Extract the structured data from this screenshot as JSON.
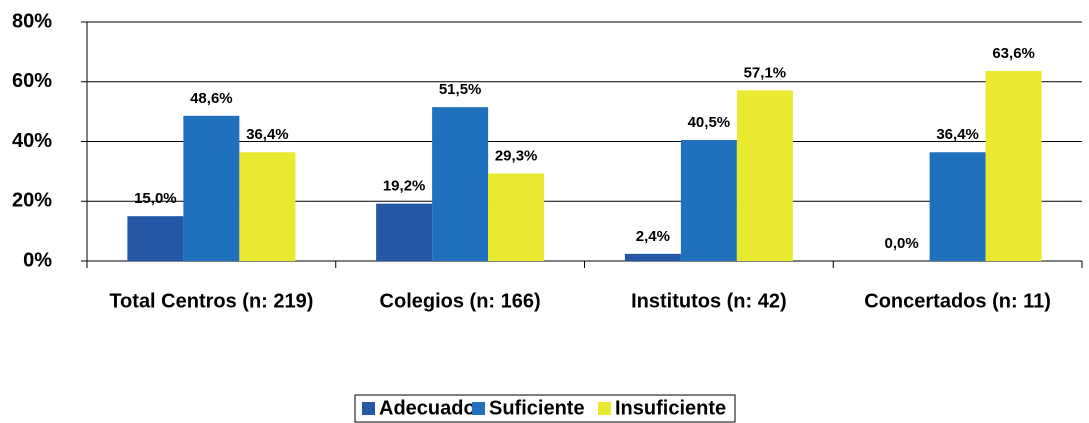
{
  "chart_data": {
    "type": "bar",
    "categories": [
      "Total Centros (n: 219)",
      "Colegios (n: 166)",
      "Institutos (n: 42)",
      "Concertados (n: 11)"
    ],
    "series": [
      {
        "name": "Adecuado",
        "color": "#2457a6",
        "values": [
          15.0,
          19.2,
          2.4,
          0.0
        ],
        "value_labels": [
          "15,0%",
          "19,2%",
          "2,4%",
          "0,0%"
        ]
      },
      {
        "name": "Suficiente",
        "color": "#1f70bd",
        "values": [
          48.6,
          51.5,
          40.5,
          36.4
        ],
        "value_labels": [
          "48,6%",
          "51,5%",
          "40,5%",
          "36,4%"
        ]
      },
      {
        "name": "Insuficiente",
        "color": "#e9e92f",
        "values": [
          36.4,
          29.3,
          57.1,
          63.6
        ],
        "value_labels": [
          "36,4%",
          "29,3%",
          "57,1%",
          "63,6%"
        ]
      }
    ],
    "ylim": [
      0,
      80
    ],
    "yticks": [
      {
        "value": 0,
        "label": "0%"
      },
      {
        "value": 20,
        "label": "20%"
      },
      {
        "value": 40,
        "label": "40%"
      },
      {
        "value": 60,
        "label": "60%"
      },
      {
        "value": 80,
        "label": "80%"
      }
    ],
    "grid": true,
    "legend": "bottom"
  }
}
